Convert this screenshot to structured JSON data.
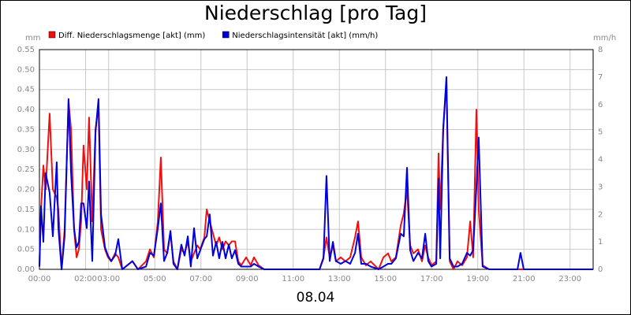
{
  "chart_data": {
    "type": "line",
    "title": "Niederschlag [pro Tag]",
    "x_label": "08.04",
    "y_label": "mm",
    "y2_label": "mm/h",
    "xlim": [
      0,
      24
    ],
    "xticks": [
      {
        "value": 0,
        "label": "00:00"
      },
      {
        "value": 2,
        "label": "02:00"
      },
      {
        "value": 3,
        "label": "03:00"
      },
      {
        "value": 5,
        "label": "05:00"
      },
      {
        "value": 7,
        "label": "07:00"
      },
      {
        "value": 9,
        "label": "09:00"
      },
      {
        "value": 11,
        "label": "11:00"
      },
      {
        "value": 13,
        "label": "13:00"
      },
      {
        "value": 15,
        "label": "15:00"
      },
      {
        "value": 17,
        "label": "17:00"
      },
      {
        "value": 19,
        "label": "19:00"
      },
      {
        "value": 21,
        "label": "21:00"
      },
      {
        "value": 23,
        "label": "23:00"
      }
    ],
    "ylim": [
      0,
      0.55
    ],
    "yticks": [
      {
        "value": 0,
        "label": "0.00"
      },
      0.05,
      {
        "value": 0.1,
        "label": "0.10"
      },
      0.15,
      {
        "value": 0.2,
        "label": "0.20"
      },
      0.25,
      {
        "value": 0.3,
        "label": "0.30"
      },
      0.35,
      {
        "value": 0.4,
        "label": "0.40"
      },
      0.45,
      {
        "value": 0.5,
        "label": "0.50"
      },
      0.55
    ],
    "y2lim": [
      0,
      8
    ],
    "y2ticks": [
      0,
      1,
      2,
      3,
      4,
      5,
      6,
      7,
      8
    ],
    "grid": true,
    "x": [
      0,
      0.07,
      0.17,
      0.27,
      0.44,
      0.58,
      0.75,
      0.82,
      0.96,
      1.09,
      1.26,
      1.37,
      1.5,
      1.61,
      1.71,
      1.81,
      1.91,
      2.05,
      2.15,
      2.29,
      2.43,
      2.56,
      2.67,
      2.84,
      2.97,
      3.11,
      3.28,
      3.42,
      3.59,
      4.03,
      4.27,
      4.62,
      4.79,
      4.96,
      5.13,
      5.26,
      5.4,
      5.54,
      5.68,
      5.81,
      5.98,
      6.15,
      6.29,
      6.43,
      6.56,
      6.7,
      6.84,
      6.97,
      7.15,
      7.25,
      7.38,
      7.52,
      7.66,
      7.79,
      7.93,
      8.07,
      8.21,
      8.34,
      8.48,
      8.62,
      8.75,
      8.96,
      9.16,
      9.3,
      9.5,
      9.74,
      12.14,
      12.31,
      12.44,
      12.58,
      12.72,
      12.85,
      13.06,
      13.26,
      13.47,
      13.68,
      13.81,
      13.95,
      14.15,
      14.36,
      14.7,
      14.91,
      15.11,
      15.25,
      15.45,
      15.66,
      15.79,
      15.93,
      16.07,
      16.21,
      16.41,
      16.58,
      16.72,
      16.85,
      16.99,
      17.2,
      17.3,
      17.37,
      17.5,
      17.64,
      17.78,
      17.95,
      18.12,
      18.32,
      18.53,
      18.67,
      18.8,
      18.94,
      19.04,
      19.21,
      19.49,
      20.72,
      20.85,
      20.99,
      24
    ],
    "series": [
      {
        "name": "Diff. Niederschlagsmenge [akt] (mm)",
        "color": "#ee1111",
        "values": [
          0.01,
          0.15,
          0.26,
          0.2,
          0.39,
          0.2,
          0.18,
          0.15,
          0,
          0.1,
          0.42,
          0.35,
          0.1,
          0.03,
          0.05,
          0.12,
          0.31,
          0.2,
          0.38,
          0.12,
          0.35,
          0.41,
          0.1,
          0.05,
          0.03,
          0.02,
          0.04,
          0.03,
          0,
          0.02,
          0,
          0.02,
          0.05,
          0.03,
          0.12,
          0.28,
          0.05,
          0.04,
          0.09,
          0.02,
          0,
          0.05,
          0.04,
          0.07,
          0.02,
          0.04,
          0.06,
          0.05,
          0.08,
          0.15,
          0.12,
          0.09,
          0.06,
          0.08,
          0.05,
          0.07,
          0.06,
          0.07,
          0.07,
          0.02,
          0.01,
          0.03,
          0.01,
          0.03,
          0.01,
          0,
          0,
          0.03,
          0.08,
          0.03,
          0.06,
          0.02,
          0.03,
          0.02,
          0.03,
          0.08,
          0.12,
          0.03,
          0.01,
          0.02,
          0,
          0.03,
          0.04,
          0.02,
          0.03,
          0.11,
          0.14,
          0.2,
          0.06,
          0.04,
          0.05,
          0.02,
          0.06,
          0.03,
          0.01,
          0.02,
          0.29,
          0.15,
          0.35,
          0.47,
          0.02,
          0,
          0.02,
          0.01,
          0.03,
          0.12,
          0.03,
          0.4,
          0.15,
          0.01,
          0,
          0,
          0,
          0,
          0
        ]
      },
      {
        "name": "Niederschlagsintensität [akt] (mm/h)",
        "color": "#0000dd",
        "axis": "y2",
        "values": [
          0.1,
          2.3,
          1.0,
          3.5,
          2.8,
          1.2,
          3.9,
          1.5,
          0,
          1.2,
          6.2,
          3.5,
          1.5,
          0.8,
          1.0,
          2.4,
          2.4,
          1.5,
          3.2,
          0.3,
          5.0,
          6.2,
          2.0,
          0.8,
          0.5,
          0.3,
          0.5,
          1.1,
          0,
          0.3,
          0,
          0.1,
          0.6,
          0.5,
          1.5,
          2.4,
          0.3,
          0.6,
          1.4,
          0.2,
          0,
          0.9,
          0.5,
          1.2,
          0.1,
          1.5,
          0.4,
          0.7,
          1.1,
          1.2,
          2.0,
          0.5,
          1.0,
          0.4,
          1.0,
          0.4,
          0.9,
          0.4,
          0.7,
          0.2,
          0.1,
          0.1,
          0.1,
          0.2,
          0.1,
          0,
          0,
          0.4,
          3.4,
          0.3,
          1.0,
          0.3,
          0.2,
          0.3,
          0.2,
          0.6,
          1.3,
          0.2,
          0.2,
          0.1,
          0,
          0.1,
          0.2,
          0.2,
          0.4,
          1.3,
          1.2,
          3.7,
          0.7,
          0.3,
          0.6,
          0.4,
          1.3,
          0.3,
          0.1,
          0.2,
          3.3,
          0.4,
          5.1,
          7.0,
          0.4,
          0.1,
          0.1,
          0.2,
          0.6,
          0.5,
          0.7,
          3.0,
          4.8,
          0.1,
          0,
          0,
          0.6,
          0,
          0
        ]
      }
    ]
  }
}
